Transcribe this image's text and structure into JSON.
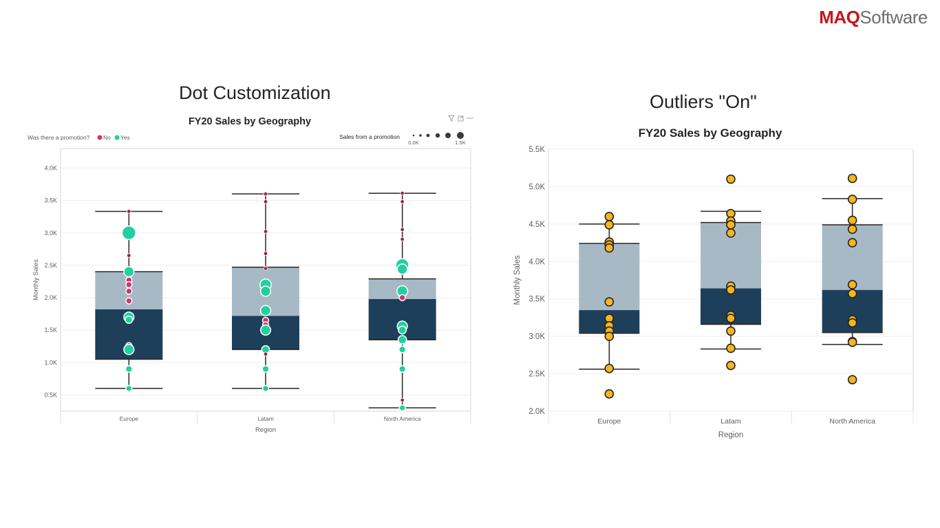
{
  "logo": {
    "brand": "MAQ",
    "suffix": "Software"
  },
  "slide_titles": {
    "left": "Dot Customization",
    "right": "Outliers \"On\""
  },
  "chart_data": [
    {
      "type": "box",
      "id": "left",
      "title": "FY20 Sales by Geography",
      "xlabel": "Region",
      "ylabel": "Monthly Sales",
      "categories": [
        "Europe",
        "Latam",
        "North America"
      ],
      "ylim": [
        0.25,
        4.3
      ],
      "yticks": [
        0.5,
        1.0,
        1.5,
        2.0,
        2.5,
        3.0,
        3.5,
        4.0
      ],
      "ytick_labels": [
        "0.5K",
        "1.0K",
        "1.5K",
        "2.0K",
        "2.5K",
        "3.0K",
        "3.5K",
        "4.0K"
      ],
      "colors": {
        "q1_box": "#1e3f5a",
        "q3_box": "#a8b9c6",
        "no": "#d1346f",
        "yes": "#21d0a0",
        "no_dark": "#9e2148"
      },
      "legend": {
        "label": "Was there a promotion?",
        "items": [
          "No",
          "Yes"
        ]
      },
      "size_legend": {
        "label": "Sales from a promotion",
        "min": "0.0K",
        "max": "1.5K"
      },
      "boxes": [
        {
          "whisker_low": 0.6,
          "q1": 1.05,
          "median": 1.82,
          "q3": 2.4,
          "whisker_high": 3.33
        },
        {
          "whisker_low": 0.6,
          "q1": 1.2,
          "median": 1.72,
          "q3": 2.47,
          "whisker_high": 3.6
        },
        {
          "whisker_low": 0.3,
          "q1": 1.35,
          "median": 1.98,
          "q3": 2.29,
          "whisker_high": 3.61
        }
      ],
      "points": [
        [
          {
            "v": 3.33,
            "promo": "No",
            "size": 0
          },
          {
            "v": 3.0,
            "promo": "Yes",
            "size": 1.5
          },
          {
            "v": 2.65,
            "promo": "No",
            "size": 0
          },
          {
            "v": 2.4,
            "promo": "Yes",
            "size": 0.9
          },
          {
            "v": 2.27,
            "promo": "No",
            "size": 0.2
          },
          {
            "v": 2.2,
            "promo": "No",
            "size": 0.2
          },
          {
            "v": 2.1,
            "promo": "No",
            "size": 0.2
          },
          {
            "v": 1.95,
            "promo": "No",
            "size": 0.2
          },
          {
            "v": 1.7,
            "promo": "Yes",
            "size": 0.9
          },
          {
            "v": 1.66,
            "promo": "Yes",
            "size": 0.4
          },
          {
            "v": 1.26,
            "promo": "No",
            "size": 0.2
          },
          {
            "v": 1.2,
            "promo": "Yes",
            "size": 0.9
          },
          {
            "v": 0.9,
            "promo": "Yes",
            "size": 0.3
          },
          {
            "v": 0.6,
            "promo": "Yes",
            "size": 0.2
          }
        ],
        [
          {
            "v": 3.6,
            "promo": "No",
            "size": 0
          },
          {
            "v": 3.48,
            "promo": "No",
            "size": 0
          },
          {
            "v": 3.02,
            "promo": "No",
            "size": 0
          },
          {
            "v": 2.68,
            "promo": "No",
            "size": 0
          },
          {
            "v": 2.45,
            "promo": "No",
            "size": 0
          },
          {
            "v": 2.2,
            "promo": "Yes",
            "size": 1.1
          },
          {
            "v": 2.1,
            "promo": "Yes",
            "size": 0.9
          },
          {
            "v": 1.8,
            "promo": "Yes",
            "size": 0.9
          },
          {
            "v": 1.65,
            "promo": "No",
            "size": 0.2
          },
          {
            "v": 1.58,
            "promo": "No",
            "size": 0.2
          },
          {
            "v": 1.5,
            "promo": "Yes",
            "size": 0.9
          },
          {
            "v": 1.2,
            "promo": "Yes",
            "size": 0.5
          },
          {
            "v": 1.13,
            "promo": "No",
            "size": 0
          },
          {
            "v": 0.9,
            "promo": "Yes",
            "size": 0.3
          },
          {
            "v": 0.6,
            "promo": "Yes",
            "size": 0.2
          }
        ],
        [
          {
            "v": 3.61,
            "promo": "No",
            "size": 0
          },
          {
            "v": 3.48,
            "promo": "No",
            "size": 0
          },
          {
            "v": 3.05,
            "promo": "No",
            "size": 0
          },
          {
            "v": 2.9,
            "promo": "No",
            "size": 0
          },
          {
            "v": 2.5,
            "promo": "Yes",
            "size": 1.4
          },
          {
            "v": 2.44,
            "promo": "Yes",
            "size": 0.9
          },
          {
            "v": 2.1,
            "promo": "Yes",
            "size": 1.0
          },
          {
            "v": 2.0,
            "promo": "No",
            "size": 0.2
          },
          {
            "v": 1.56,
            "promo": "Yes",
            "size": 0.9
          },
          {
            "v": 1.5,
            "promo": "Yes",
            "size": 0.5
          },
          {
            "v": 1.35,
            "promo": "Yes",
            "size": 0.6
          },
          {
            "v": 1.2,
            "promo": "Yes",
            "size": 0.3
          },
          {
            "v": 0.9,
            "promo": "Yes",
            "size": 0.3
          },
          {
            "v": 0.42,
            "promo": "No",
            "size": 0
          },
          {
            "v": 0.3,
            "promo": "Yes",
            "size": 0.2
          }
        ]
      ]
    },
    {
      "type": "box",
      "id": "right",
      "title": "FY20 Sales by Geography",
      "xlabel": "Region",
      "ylabel": "Monthly Sales",
      "categories": [
        "Europe",
        "Latam",
        "North America"
      ],
      "ylim": [
        2.0,
        5.5
      ],
      "yticks": [
        2.0,
        2.5,
        3.0,
        3.5,
        4.0,
        4.5,
        5.0,
        5.5
      ],
      "ytick_labels": [
        "2.0K",
        "2.5K",
        "3.0K",
        "3.5K",
        "4.0K",
        "4.5K",
        "5.0K",
        "5.5K"
      ],
      "colors": {
        "q1_box": "#1e3f5a",
        "q3_box": "#a8b9c6",
        "point": "#f5b51e"
      },
      "boxes": [
        {
          "whisker_low": 2.56,
          "q1": 3.04,
          "median": 3.35,
          "q3": 4.24,
          "whisker_high": 4.5
        },
        {
          "whisker_low": 2.83,
          "q1": 3.16,
          "median": 3.64,
          "q3": 4.52,
          "whisker_high": 4.67
        },
        {
          "whisker_low": 2.89,
          "q1": 3.05,
          "median": 3.62,
          "q3": 4.49,
          "whisker_high": 4.84
        }
      ],
      "points": [
        [
          4.6,
          4.49,
          4.26,
          4.22,
          4.18,
          3.46,
          3.24,
          3.14,
          3.07,
          3.0,
          2.57,
          2.23
        ],
        [
          5.1,
          4.64,
          4.54,
          4.49,
          4.38,
          3.67,
          3.62,
          3.28,
          3.24,
          3.07,
          2.84,
          2.61
        ],
        [
          5.11,
          4.83,
          4.55,
          4.43,
          4.25,
          3.69,
          3.57,
          3.22,
          3.18,
          2.93,
          2.92,
          2.42
        ]
      ]
    }
  ]
}
